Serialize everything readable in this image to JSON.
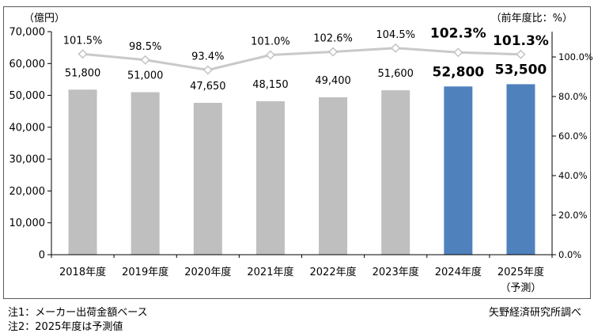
{
  "colors": {
    "bar_gray": "#BFBFBF",
    "bar_blue": "#4F81BD",
    "line_gray": "#C9C9C9",
    "marker_stroke": "#C2C2C2",
    "marker_fill": "#FFFFFF",
    "emphasis_text": "#4472A8",
    "axis": "#000000",
    "frame_border": "#595959"
  },
  "notes": [
    "注1：メーカー出荷金額ベース",
    "注2：2025年度は予測値"
  ],
  "source": "矢野経済研究所調べ",
  "chart_data": {
    "type": "bar",
    "subtype": "bar-line-combo",
    "title": "",
    "legend_position": "none",
    "grid": false,
    "categories": [
      "2018年度",
      "2019年度",
      "2020年度",
      "2021年度",
      "2022年度",
      "2023年度",
      "2024年度",
      "2025年度"
    ],
    "last_category_note": "（予測）",
    "bars": {
      "values": [
        51800,
        51000,
        47650,
        48150,
        49400,
        51600,
        52800,
        53500
      ],
      "labels": [
        "51,800",
        "51,000",
        "47,650",
        "48,150",
        "49,400",
        "51,600",
        "52,800",
        "53,500"
      ]
    },
    "line": {
      "values_pct": [
        101.5,
        98.5,
        93.4,
        101.0,
        102.6,
        104.5,
        102.3,
        101.3
      ],
      "labels": [
        "101.5%",
        "98.5%",
        "93.4%",
        "101.0%",
        "102.6%",
        "104.5%",
        "102.3%",
        "101.3%"
      ]
    },
    "emphasized": [
      false,
      false,
      false,
      false,
      false,
      false,
      true,
      true
    ],
    "left_axis": {
      "label": "（億円）",
      "min": 0,
      "max": 70000,
      "step": 10000,
      "tick_labels": [
        "0",
        "10,000",
        "20,000",
        "30,000",
        "40,000",
        "50,000",
        "60,000",
        "70,000"
      ]
    },
    "right_axis": {
      "label": "（前年度比：%）",
      "min": 0,
      "tick_values": [
        0,
        20,
        40,
        60,
        80,
        100
      ],
      "tick_labels": [
        "0.0%",
        "20.0%",
        "40.0%",
        "60.0%",
        "80.0%",
        "100.0%"
      ]
    }
  }
}
